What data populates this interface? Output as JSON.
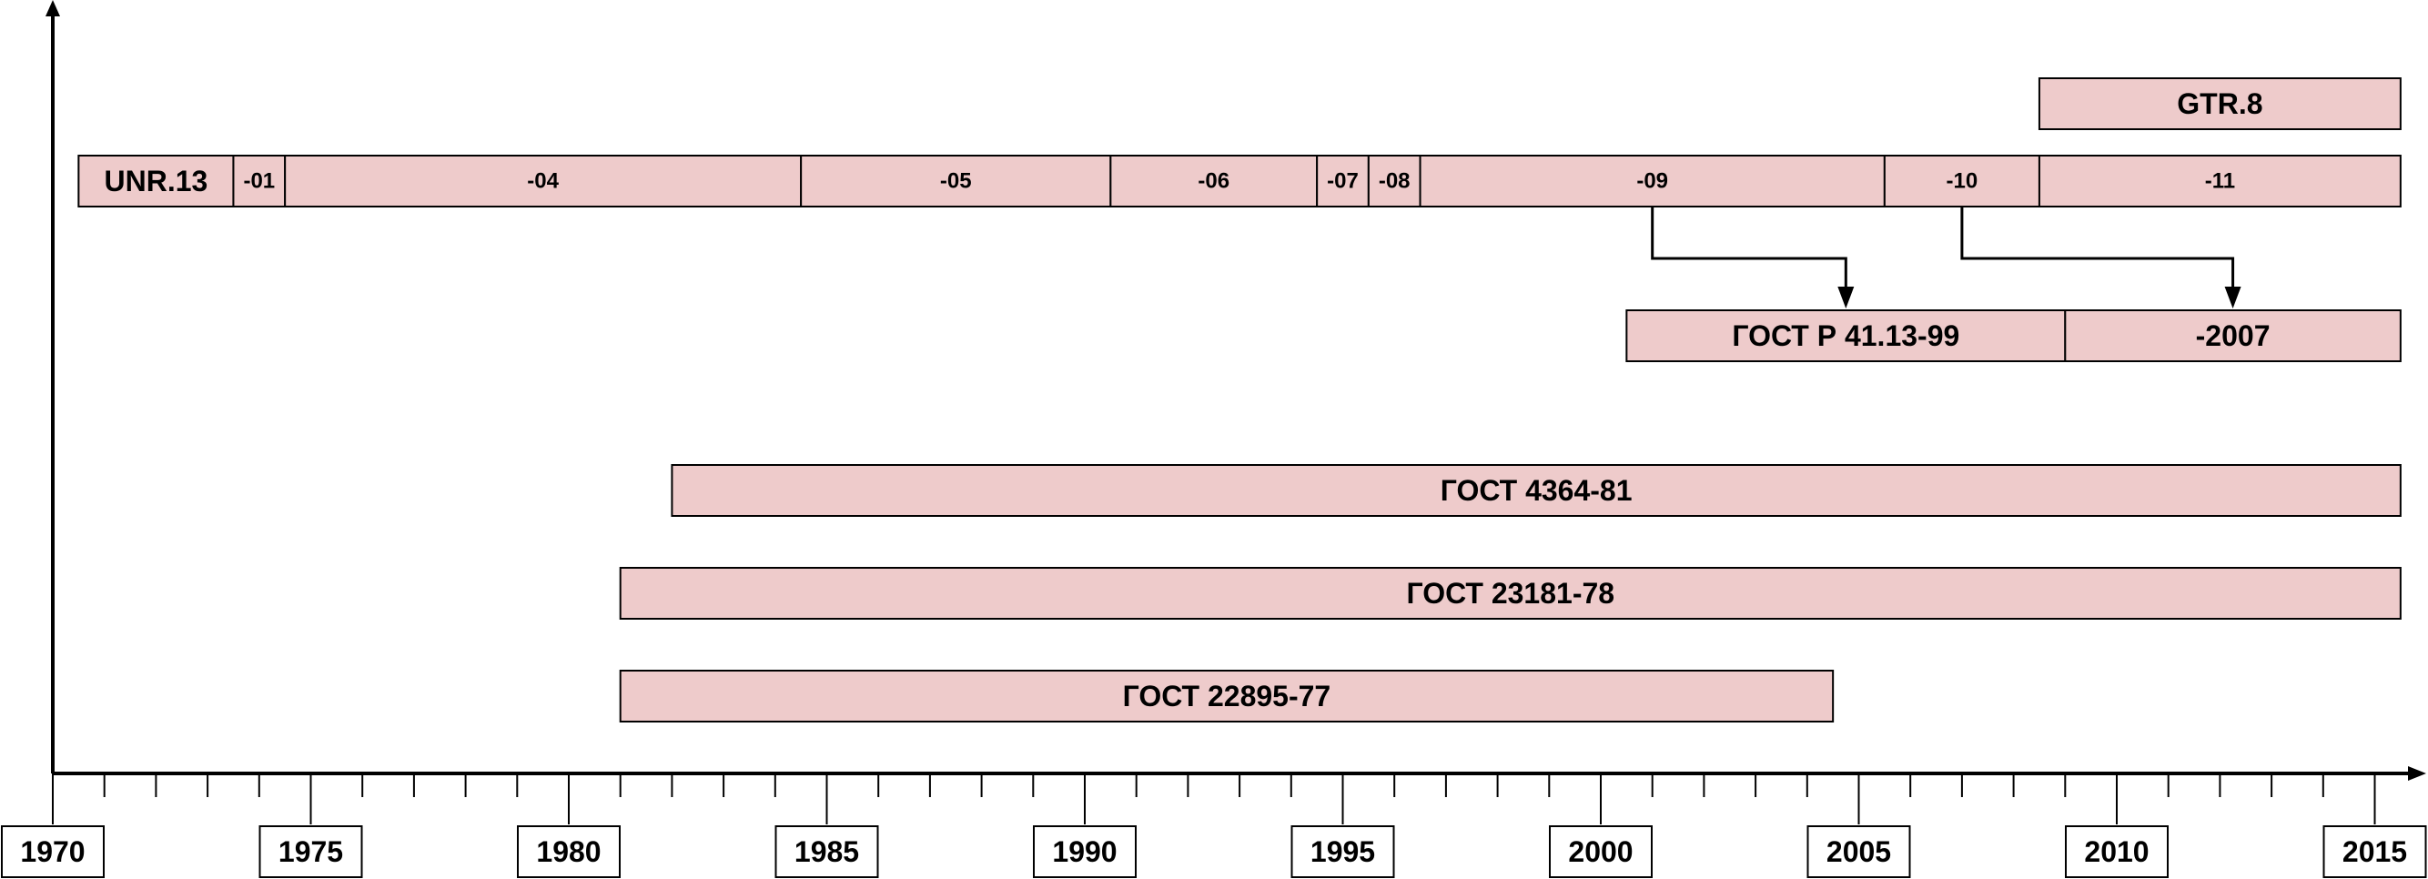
{
  "colors": {
    "bar_fill": "#eecbcb",
    "stroke": "#000000",
    "background": "#ffffff"
  },
  "axis": {
    "start_year": 1970,
    "end_year": 2015,
    "labeled_years": [
      "1970",
      "1975",
      "1980",
      "1985",
      "1990",
      "1995",
      "2000",
      "2005",
      "2010",
      "2015"
    ]
  },
  "rows": [
    {
      "id": "gtr",
      "segments": [
        {
          "name": "gtr-8",
          "label": "GTR.8",
          "start": 2008.5,
          "end": 2015.5
        }
      ]
    },
    {
      "id": "unr13",
      "segments": [
        {
          "name": "unr13",
          "label": "UNR.13",
          "start": 1970.5,
          "end": 1973.5
        },
        {
          "name": "unr13-01",
          "label": "-01",
          "start": 1973.5,
          "end": 1974.5
        },
        {
          "name": "unr13-04",
          "label": "-04",
          "start": 1974.5,
          "end": 1984.5
        },
        {
          "name": "unr13-05",
          "label": "-05",
          "start": 1984.5,
          "end": 1990.5
        },
        {
          "name": "unr13-06",
          "label": "-06",
          "start": 1990.5,
          "end": 1994.5
        },
        {
          "name": "unr13-07",
          "label": "-07",
          "start": 1994.5,
          "end": 1995.5
        },
        {
          "name": "unr13-08",
          "label": "-08",
          "start": 1995.5,
          "end": 1996.5
        },
        {
          "name": "unr13-09",
          "label": "-09",
          "start": 1996.5,
          "end": 2005.5
        },
        {
          "name": "unr13-10",
          "label": "-10",
          "start": 2005.5,
          "end": 2008.5
        },
        {
          "name": "unr13-11",
          "label": "-11",
          "start": 2008.5,
          "end": 2015.5
        }
      ]
    },
    {
      "id": "gost-r",
      "segments": [
        {
          "name": "gost-r-41-13-99",
          "label": "ГОСТ Р 41.13-99",
          "start": 2000.5,
          "end": 2009.0
        },
        {
          "name": "gost-r-2007",
          "label": "-2007",
          "start": 2009.0,
          "end": 2015.5
        }
      ]
    },
    {
      "id": "gost-4364",
      "segments": [
        {
          "name": "gost-4364-81",
          "label": "ГОСТ 4364-81",
          "start": 1982.0,
          "end": 2015.5
        }
      ]
    },
    {
      "id": "gost-23181",
      "segments": [
        {
          "name": "gost-23181-78",
          "label": "ГОСТ 23181-78",
          "start": 1981.0,
          "end": 2015.5
        }
      ]
    },
    {
      "id": "gost-22895",
      "segments": [
        {
          "name": "gost-22895-77",
          "label": "ГОСТ 22895-77",
          "start": 1981.0,
          "end": 2004.5
        }
      ]
    }
  ],
  "connectors": [
    {
      "name": "connector-09-to-gost-r",
      "from_year": 2001.0,
      "to_year": 2004.75
    },
    {
      "name": "connector-10-to-2007",
      "from_year": 2007.0,
      "to_year": 2012.25
    }
  ]
}
